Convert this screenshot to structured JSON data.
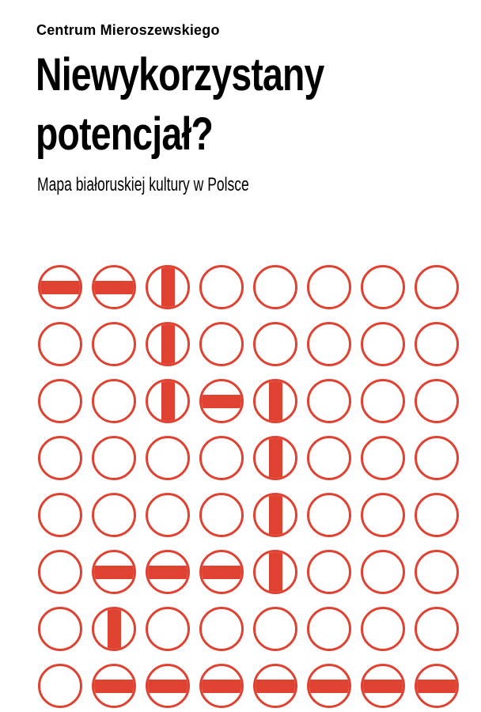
{
  "page": {
    "organization": "Centrum Mieroszewskiego",
    "title": "Niewykorzystany potencjał?",
    "title_lines": [
      "Niewykorzystany",
      "potencjał?"
    ],
    "subtitle": "Mapa białoruskiej kultury w Polsce"
  },
  "colors": {
    "accent_red": "#e04232",
    "text": "#000000",
    "background": "#ffffff"
  },
  "flag_grid": {
    "rows": 8,
    "cols": 8,
    "legend": {
      "E": "empty-circle",
      "H": "white-red-white-flag-horizontal",
      "V": "white-red-white-flag-vertical"
    },
    "pattern": [
      [
        "H",
        "H",
        "V",
        "E",
        "E",
        "E",
        "E",
        "E"
      ],
      [
        "E",
        "E",
        "V",
        "E",
        "E",
        "E",
        "E",
        "E"
      ],
      [
        "E",
        "E",
        "V",
        "H",
        "V",
        "E",
        "E",
        "E"
      ],
      [
        "E",
        "E",
        "E",
        "E",
        "V",
        "E",
        "E",
        "E"
      ],
      [
        "E",
        "E",
        "E",
        "E",
        "V",
        "E",
        "E",
        "E"
      ],
      [
        "E",
        "H",
        "H",
        "H",
        "V",
        "E",
        "E",
        "E"
      ],
      [
        "E",
        "V",
        "E",
        "E",
        "E",
        "E",
        "E",
        "E"
      ],
      [
        "E",
        "H",
        "H",
        "H",
        "H",
        "H",
        "H",
        "H"
      ]
    ]
  }
}
